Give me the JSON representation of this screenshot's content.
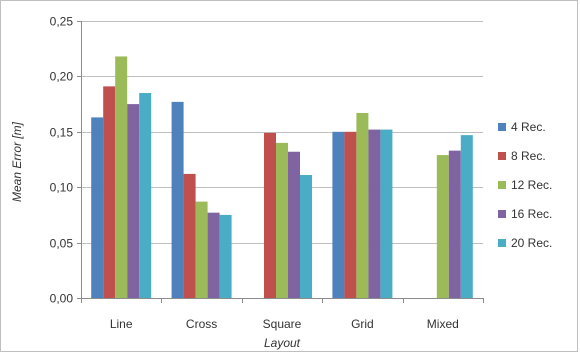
{
  "chart_data": {
    "type": "bar",
    "title": "",
    "xlabel": "Layout",
    "ylabel": "Mean Error [m]",
    "categories": [
      "Line",
      "Cross",
      "Square",
      "Grid",
      "Mixed"
    ],
    "ylim": [
      0,
      0.25
    ],
    "yticks": [
      0,
      0.05,
      0.1,
      0.15,
      0.2,
      0.25
    ],
    "ytick_labels": [
      "0,00",
      "0,05",
      "0,10",
      "0,15",
      "0,20",
      "0,25"
    ],
    "grid": true,
    "legend_position": "right",
    "series": [
      {
        "name": "4 Rec.",
        "color": "#4f81bd",
        "values": [
          0.163,
          0.177,
          null,
          0.15,
          null
        ]
      },
      {
        "name": "8 Rec.",
        "color": "#c0504d",
        "values": [
          0.191,
          0.112,
          0.149,
          0.15,
          null
        ]
      },
      {
        "name": "12 Rec.",
        "color": "#9bbb59",
        "values": [
          0.218,
          0.087,
          0.14,
          0.167,
          0.129
        ]
      },
      {
        "name": "16 Rec.",
        "color": "#8064a2",
        "values": [
          0.175,
          0.077,
          0.132,
          0.152,
          0.133
        ]
      },
      {
        "name": "20 Rec.",
        "color": "#4bacc6",
        "values": [
          0.185,
          0.075,
          0.111,
          0.152,
          0.147
        ]
      }
    ]
  }
}
